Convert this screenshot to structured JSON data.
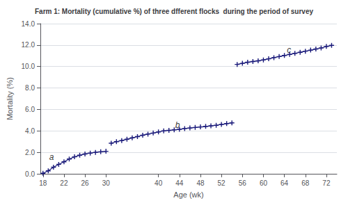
{
  "chart_data": {
    "type": "line",
    "title": "Farm 1: Mortality (cumulative %) of three dfferent flocks  during the period of survey",
    "x_label": "Age (wk)",
    "y_label": "Mortality (%)",
    "xlim": [
      17.5,
      74
    ],
    "ylim": [
      0,
      14.0
    ],
    "xticks": [
      18,
      22,
      26,
      30,
      40,
      44,
      48,
      52,
      56,
      60,
      64,
      68,
      72
    ],
    "yticks": [
      {
        "value": 0.0,
        "label": "0.0"
      },
      {
        "value": 2.0,
        "label": "2.0"
      },
      {
        "value": 4.0,
        "label": "4.0"
      },
      {
        "value": 6.0,
        "label": "6.0"
      },
      {
        "value": 8.0,
        "label": "8.0"
      },
      {
        "value": 10.0,
        "label": "10.0"
      },
      {
        "value": 12.0,
        "label": "12.0"
      },
      {
        "value": 14.0,
        "label": "14.0"
      }
    ],
    "grid": "y",
    "color": "#1a1a7a",
    "marker": "plus",
    "series": [
      {
        "x": [
          18,
          19,
          20,
          21,
          22,
          23,
          24,
          25,
          26,
          27,
          28,
          29,
          30
        ],
        "values": [
          0.05,
          0.28,
          0.62,
          0.88,
          1.12,
          1.38,
          1.58,
          1.73,
          1.85,
          1.93,
          2.0,
          2.05,
          2.1
        ]
      },
      {
        "x": [
          31,
          32,
          33,
          34,
          35,
          36,
          37,
          38,
          39,
          40,
          41,
          42,
          43,
          44,
          45,
          46,
          47,
          48,
          49,
          50,
          51,
          52,
          53,
          54
        ],
        "values": [
          2.85,
          3.0,
          3.1,
          3.22,
          3.35,
          3.47,
          3.6,
          3.7,
          3.8,
          3.9,
          4.0,
          4.05,
          4.1,
          4.15,
          4.22,
          4.27,
          4.32,
          4.37,
          4.42,
          4.47,
          4.52,
          4.6,
          4.68,
          4.75
        ]
      },
      {
        "x": [
          55,
          56,
          57,
          58,
          59,
          60,
          61,
          62,
          63,
          64,
          65,
          66,
          67,
          68,
          69,
          70,
          71,
          72,
          73
        ],
        "values": [
          10.2,
          10.3,
          10.4,
          10.47,
          10.53,
          10.62,
          10.72,
          10.83,
          10.93,
          11.03,
          11.13,
          11.23,
          11.33,
          11.43,
          11.53,
          11.63,
          11.73,
          11.87,
          11.97
        ]
      }
    ],
    "annotations": [
      {
        "text": "a",
        "x": 19.2,
        "y": 1.55
      },
      {
        "text": "b",
        "x": 43.2,
        "y": 4.55
      },
      {
        "text": "c",
        "x": 64.5,
        "y": 11.55
      }
    ]
  }
}
